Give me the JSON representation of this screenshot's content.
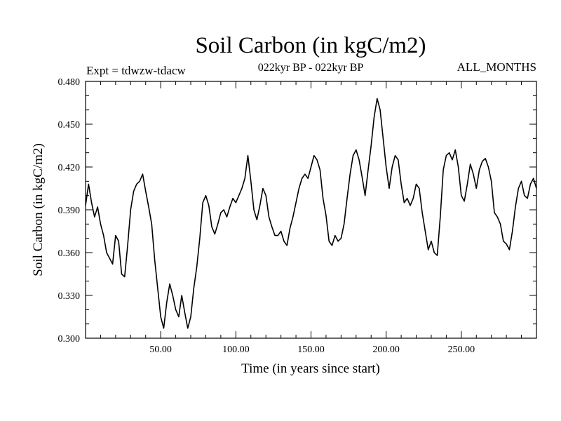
{
  "chart_data": {
    "type": "line",
    "title": "Soil Carbon (in kgC/m2)",
    "subtitle_left": "Expt = tdwzw-tdacw",
    "subtitle_center": "022kyr BP - 022kyr BP",
    "subtitle_right": "ALL_MONTHS",
    "xlabel": "Time (in years since start)",
    "ylabel": "Soil Carbon (in kgC/m2)",
    "xlim": [
      0,
      300
    ],
    "ylim": [
      0.3,
      0.48
    ],
    "x_ticks": [
      {
        "value": 50,
        "label": "50.00"
      },
      {
        "value": 100,
        "label": "100.00"
      },
      {
        "value": 150,
        "label": "150.00"
      },
      {
        "value": 200,
        "label": "200.00"
      },
      {
        "value": 250,
        "label": "250.00"
      }
    ],
    "y_ticks": [
      {
        "value": 0.3,
        "label": "0.300"
      },
      {
        "value": 0.33,
        "label": "0.330"
      },
      {
        "value": 0.36,
        "label": "0.360"
      },
      {
        "value": 0.39,
        "label": "0.390"
      },
      {
        "value": 0.42,
        "label": "0.420"
      },
      {
        "value": 0.45,
        "label": "0.450"
      },
      {
        "value": 0.48,
        "label": "0.480"
      }
    ],
    "grid": false,
    "series": [
      {
        "color": "#000000",
        "points": [
          [
            0,
            0.393
          ],
          [
            2,
            0.408
          ],
          [
            4,
            0.395
          ],
          [
            6,
            0.385
          ],
          [
            8,
            0.392
          ],
          [
            10,
            0.38
          ],
          [
            12,
            0.372
          ],
          [
            14,
            0.36
          ],
          [
            16,
            0.356
          ],
          [
            18,
            0.352
          ],
          [
            20,
            0.372
          ],
          [
            22,
            0.368
          ],
          [
            24,
            0.345
          ],
          [
            26,
            0.343
          ],
          [
            28,
            0.365
          ],
          [
            30,
            0.39
          ],
          [
            32,
            0.403
          ],
          [
            34,
            0.408
          ],
          [
            36,
            0.41
          ],
          [
            38,
            0.415
          ],
          [
            40,
            0.403
          ],
          [
            42,
            0.392
          ],
          [
            44,
            0.38
          ],
          [
            46,
            0.355
          ],
          [
            48,
            0.335
          ],
          [
            50,
            0.315
          ],
          [
            52,
            0.307
          ],
          [
            54,
            0.325
          ],
          [
            56,
            0.338
          ],
          [
            58,
            0.33
          ],
          [
            60,
            0.32
          ],
          [
            62,
            0.315
          ],
          [
            64,
            0.33
          ],
          [
            66,
            0.318
          ],
          [
            68,
            0.307
          ],
          [
            70,
            0.315
          ],
          [
            72,
            0.335
          ],
          [
            74,
            0.35
          ],
          [
            76,
            0.37
          ],
          [
            78,
            0.395
          ],
          [
            80,
            0.4
          ],
          [
            82,
            0.393
          ],
          [
            84,
            0.378
          ],
          [
            86,
            0.373
          ],
          [
            88,
            0.38
          ],
          [
            90,
            0.388
          ],
          [
            92,
            0.39
          ],
          [
            94,
            0.385
          ],
          [
            96,
            0.392
          ],
          [
            98,
            0.398
          ],
          [
            100,
            0.395
          ],
          [
            102,
            0.4
          ],
          [
            104,
            0.405
          ],
          [
            106,
            0.412
          ],
          [
            108,
            0.428
          ],
          [
            110,
            0.41
          ],
          [
            112,
            0.39
          ],
          [
            114,
            0.383
          ],
          [
            116,
            0.393
          ],
          [
            118,
            0.405
          ],
          [
            120,
            0.4
          ],
          [
            122,
            0.385
          ],
          [
            124,
            0.378
          ],
          [
            126,
            0.372
          ],
          [
            128,
            0.372
          ],
          [
            130,
            0.375
          ],
          [
            132,
            0.368
          ],
          [
            134,
            0.365
          ],
          [
            136,
            0.377
          ],
          [
            138,
            0.385
          ],
          [
            140,
            0.395
          ],
          [
            142,
            0.405
          ],
          [
            144,
            0.412
          ],
          [
            146,
            0.415
          ],
          [
            148,
            0.412
          ],
          [
            150,
            0.42
          ],
          [
            152,
            0.428
          ],
          [
            154,
            0.425
          ],
          [
            156,
            0.418
          ],
          [
            158,
            0.398
          ],
          [
            160,
            0.386
          ],
          [
            162,
            0.368
          ],
          [
            164,
            0.365
          ],
          [
            166,
            0.372
          ],
          [
            168,
            0.368
          ],
          [
            170,
            0.37
          ],
          [
            172,
            0.38
          ],
          [
            174,
            0.398
          ],
          [
            176,
            0.415
          ],
          [
            178,
            0.428
          ],
          [
            180,
            0.432
          ],
          [
            182,
            0.425
          ],
          [
            184,
            0.413
          ],
          [
            186,
            0.4
          ],
          [
            188,
            0.418
          ],
          [
            190,
            0.435
          ],
          [
            192,
            0.455
          ],
          [
            194,
            0.468
          ],
          [
            196,
            0.46
          ],
          [
            198,
            0.44
          ],
          [
            200,
            0.42
          ],
          [
            202,
            0.405
          ],
          [
            204,
            0.42
          ],
          [
            206,
            0.428
          ],
          [
            208,
            0.425
          ],
          [
            210,
            0.408
          ],
          [
            212,
            0.395
          ],
          [
            214,
            0.398
          ],
          [
            216,
            0.393
          ],
          [
            218,
            0.398
          ],
          [
            220,
            0.408
          ],
          [
            222,
            0.405
          ],
          [
            224,
            0.388
          ],
          [
            226,
            0.375
          ],
          [
            228,
            0.362
          ],
          [
            230,
            0.368
          ],
          [
            232,
            0.36
          ],
          [
            234,
            0.358
          ],
          [
            236,
            0.385
          ],
          [
            238,
            0.418
          ],
          [
            240,
            0.428
          ],
          [
            242,
            0.43
          ],
          [
            244,
            0.425
          ],
          [
            246,
            0.432
          ],
          [
            248,
            0.42
          ],
          [
            250,
            0.4
          ],
          [
            252,
            0.396
          ],
          [
            254,
            0.408
          ],
          [
            256,
            0.422
          ],
          [
            258,
            0.415
          ],
          [
            260,
            0.405
          ],
          [
            262,
            0.418
          ],
          [
            264,
            0.424
          ],
          [
            266,
            0.426
          ],
          [
            268,
            0.42
          ],
          [
            270,
            0.41
          ],
          [
            272,
            0.388
          ],
          [
            274,
            0.385
          ],
          [
            276,
            0.38
          ],
          [
            278,
            0.368
          ],
          [
            280,
            0.366
          ],
          [
            282,
            0.362
          ],
          [
            284,
            0.375
          ],
          [
            286,
            0.392
          ],
          [
            288,
            0.405
          ],
          [
            290,
            0.41
          ],
          [
            292,
            0.4
          ],
          [
            294,
            0.398
          ],
          [
            296,
            0.408
          ],
          [
            298,
            0.412
          ],
          [
            300,
            0.405
          ]
        ]
      }
    ]
  }
}
